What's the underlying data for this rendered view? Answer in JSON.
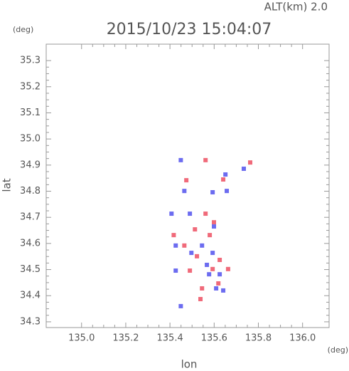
{
  "chart_data": {
    "type": "scatter",
    "title": "2015/10/23 15:04:07",
    "subtitle": "ALT(km) 2.0",
    "x_label": "lon",
    "y_label": "lat",
    "x_unit": "(deg)",
    "y_unit": "(deg)",
    "xlim": [
      134.84,
      136.12
    ],
    "ylim": [
      34.278,
      35.363
    ],
    "xticks": [
      {
        "value": 135,
        "label": "135.0"
      },
      135.2,
      135.4,
      135.6,
      135.8,
      {
        "value": 136,
        "label": "136.0"
      }
    ],
    "yticks": [
      34.3,
      34.4,
      34.5,
      34.6,
      34.7,
      34.8,
      34.9,
      {
        "value": 35,
        "label": "35.0"
      },
      35.1,
      35.2,
      35.3
    ],
    "series": [
      {
        "color": "#f06a7a",
        "x": [
          135.561,
          135.763,
          135.474,
          135.641,
          135.513,
          135.465,
          135.58,
          135.522,
          135.593,
          135.49,
          135.619,
          135.538,
          135.625,
          135.417,
          135.561,
          135.545,
          135.663,
          135.599
        ],
        "y": [
          34.919,
          34.91,
          34.842,
          34.845,
          34.654,
          34.592,
          34.632,
          34.551,
          34.502,
          34.496,
          34.447,
          34.387,
          34.537,
          34.632,
          34.714,
          34.428,
          34.502,
          34.681
        ]
      },
      {
        "color": "#6c6cf0",
        "x": [
          135.449,
          135.465,
          135.593,
          135.651,
          135.426,
          135.545,
          135.593,
          135.567,
          135.497,
          135.641,
          135.449,
          135.609,
          135.599,
          135.49,
          135.577,
          135.625,
          135.407,
          135.657,
          135.734,
          135.426
        ],
        "y": [
          34.919,
          34.801,
          34.796,
          34.864,
          34.592,
          34.592,
          34.564,
          34.518,
          34.564,
          34.42,
          34.36,
          34.428,
          34.665,
          34.714,
          34.482,
          34.482,
          34.714,
          34.801,
          34.886,
          34.496
        ]
      }
    ]
  }
}
